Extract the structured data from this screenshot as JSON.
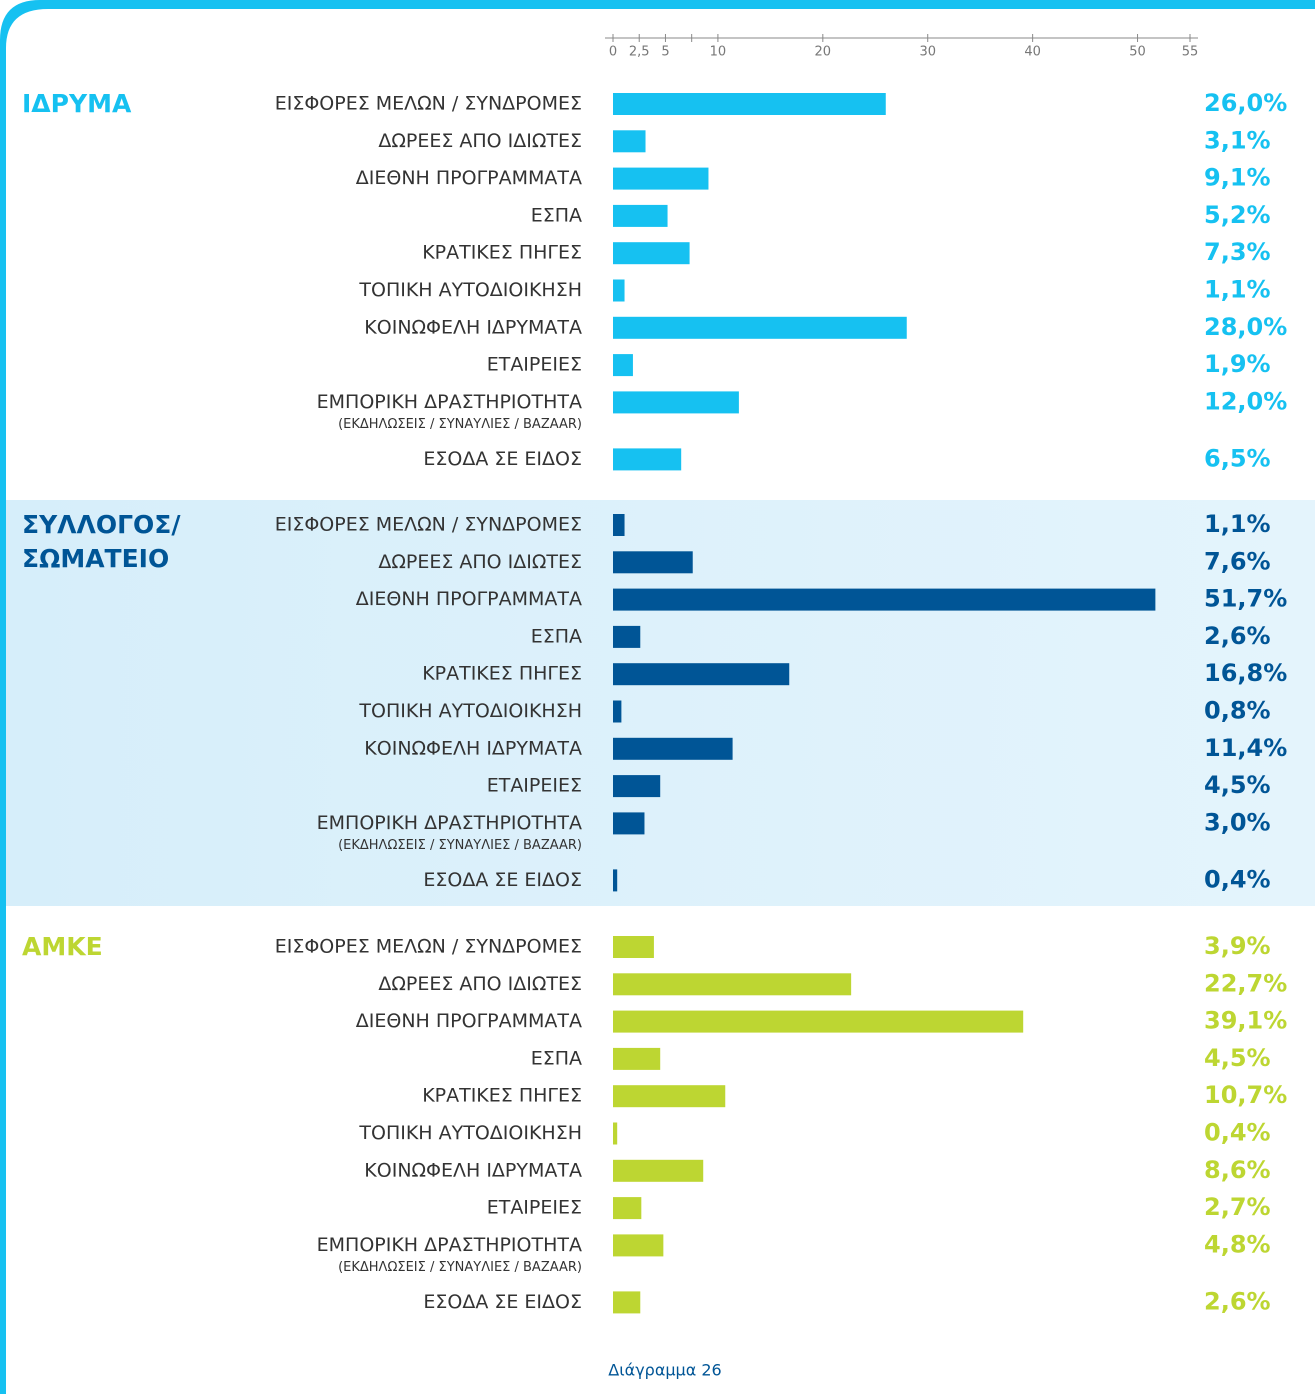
{
  "chart_data": {
    "type": "bar",
    "orientation": "horizontal",
    "caption": "Διάγραμμα 26",
    "categories": [
      "ΕΙΣΦΟΡΕΣ ΜΕΛΩΝ / ΣΥΝΔΡΟΜΕΣ",
      "ΔΩΡΕΕΣ ΑΠΟ ΙΔΙΩΤΕΣ",
      "ΔΙΕΘΝΗ ΠΡΟΓΡΑΜΜΑΤΑ",
      "ΕΣΠΑ",
      "ΚΡΑΤΙΚΕΣ ΠΗΓΕΣ",
      "ΤΟΠΙΚΗ ΑΥΤΟΔΙΟΙΚΗΣΗ",
      "ΚΟΙΝΩΦΕΛΗ ΙΔΡΥΜΑΤΑ",
      "ΕΤΑΙΡΕΙΕΣ",
      "ΕΜΠΟΡΙΚΗ ΔΡΑΣΤΗΡΙΟΤΗΤΑ",
      "ΕΣΟΔΑ ΣΕ ΕΙΔΟΣ"
    ],
    "category_notes": [
      null,
      null,
      null,
      null,
      null,
      null,
      null,
      null,
      "(ΕΚΔΗΛΩΣΕΙΣ / ΣΥΝΑΥΛΙΕΣ / BAZAAR)",
      null
    ],
    "xlim": [
      0,
      55
    ],
    "xticks": [
      0,
      {
        "value": 2.5,
        "label": "2,5"
      },
      5,
      {
        "value": 7.5,
        "label": null
      },
      10,
      20,
      30,
      40,
      50,
      55
    ],
    "series": [
      {
        "name": "ΙΔΡΥΜΑ",
        "color": "#16c1f1",
        "values": [
          26.0,
          3.1,
          9.1,
          5.2,
          7.3,
          1.1,
          28.0,
          1.9,
          12.0,
          6.5
        ],
        "value_labels": [
          "26,0%",
          "3,1%",
          "9,1%",
          "5,2%",
          "7,3%",
          "1,1%",
          "28,0%",
          "1,9%",
          "12,0%",
          "6,5%"
        ]
      },
      {
        "name": "ΣΥΛΛΟΓΟΣ/ ΣΩΜΑΤΕΙΟ",
        "color": "#005596",
        "values": [
          1.1,
          7.6,
          51.7,
          2.6,
          16.8,
          0.8,
          11.4,
          4.5,
          3.0,
          0.4
        ],
        "value_labels": [
          "1,1%",
          "7,6%",
          "51,7%",
          "2,6%",
          "16,8%",
          "0,8%",
          "11,4%",
          "4,5%",
          "3,0%",
          "0,4%"
        ]
      },
      {
        "name": "ΑΜΚΕ",
        "color": "#bdd632",
        "values": [
          3.9,
          22.7,
          39.1,
          4.5,
          10.7,
          0.4,
          8.6,
          2.7,
          4.8,
          2.6
        ],
        "value_labels": [
          "3,9%",
          "22,7%",
          "39,1%",
          "4,5%",
          "10,7%",
          "0,4%",
          "8,6%",
          "2,7%",
          "4,8%",
          "2,6%"
        ]
      }
    ]
  }
}
